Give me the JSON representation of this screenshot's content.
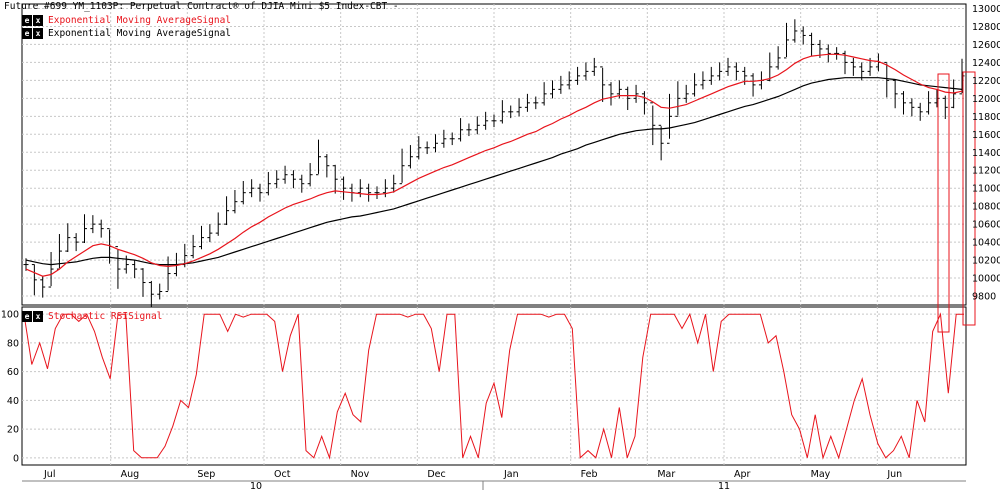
{
  "chart_data": [
    {
      "type": "line",
      "title": "Future #699 YM_1103P: Perpetual Contract® of DJIA Mini $5 Index-CBT -",
      "legend": [
        {
          "label": "Exponential Moving AverageSignal",
          "color": "#e8141c"
        },
        {
          "label": "Exponential Moving AverageSignal",
          "color": "#000000"
        }
      ],
      "ylim": [
        9700,
        13050
      ],
      "yticks": [
        9800,
        10000,
        10200,
        10400,
        10600,
        10800,
        11000,
        11200,
        11400,
        11600,
        11800,
        12000,
        12200,
        12400,
        12600,
        12800,
        13000
      ],
      "series": [
        {
          "name": "Price",
          "style": "ohlc",
          "values": [
            10150,
            9980,
            9900,
            10100,
            10300,
            10450,
            10400,
            10550,
            10600,
            10550,
            10350,
            10100,
            10150,
            10100,
            9950,
            9820,
            9850,
            10050,
            10150,
            10250,
            10350,
            10450,
            10500,
            10600,
            10750,
            10850,
            10950,
            11000,
            10950,
            11050,
            11100,
            11150,
            11100,
            11050,
            11150,
            11350,
            11250,
            11100,
            11000,
            10950,
            11000,
            10950,
            10950,
            11000,
            11050,
            11250,
            11350,
            11450,
            11450,
            11500,
            11550,
            11550,
            11650,
            11650,
            11700,
            11750,
            11750,
            11850,
            11850,
            11900,
            11950,
            11950,
            12050,
            12100,
            12150,
            12200,
            12250,
            12300,
            12350,
            12150,
            12050,
            12100,
            12000,
            12050,
            11950,
            11700,
            11500,
            11800,
            12000,
            12050,
            12150,
            12200,
            12250,
            12300,
            12350,
            12300,
            12250,
            12150,
            12200,
            12350,
            12450,
            12650,
            12750,
            12700,
            12600,
            12550,
            12500,
            12500,
            12400,
            12350,
            12300,
            12350,
            12400,
            12200,
            12050,
            11950,
            11900,
            11850,
            11950,
            12000,
            11900,
            12050,
            12250
          ]
        },
        {
          "name": "",
          "color": "#e8141c",
          "values": [
            10100,
            10060,
            10020,
            10040,
            10100,
            10180,
            10240,
            10300,
            10360,
            10380,
            10360,
            10320,
            10290,
            10260,
            10220,
            10170,
            10140,
            10130,
            10140,
            10160,
            10190,
            10230,
            10270,
            10320,
            10380,
            10440,
            10510,
            10570,
            10620,
            10680,
            10730,
            10780,
            10820,
            10850,
            10880,
            10920,
            10950,
            10970,
            10960,
            10950,
            10940,
            10930,
            10930,
            10940,
            10960,
            11010,
            11060,
            11110,
            11150,
            11190,
            11230,
            11260,
            11300,
            11340,
            11380,
            11420,
            11450,
            11490,
            11520,
            11560,
            11600,
            11630,
            11680,
            11720,
            11770,
            11810,
            11860,
            11900,
            11950,
            11990,
            12010,
            12030,
            12030,
            12030,
            12010,
            11960,
            11900,
            11890,
            11910,
            11930,
            11970,
            12010,
            12050,
            12090,
            12130,
            12160,
            12190,
            12190,
            12200,
            12220,
            12260,
            12320,
            12390,
            12440,
            12470,
            12480,
            12490,
            12490,
            12480,
            12460,
            12440,
            12420,
            12410,
            12370,
            12320,
            12260,
            12210,
            12160,
            12120,
            12100,
            12070,
            12060,
            12080
          ]
        },
        {
          "name": "",
          "color": "#000000",
          "values": [
            10200,
            10180,
            10160,
            10150,
            10160,
            10170,
            10180,
            10200,
            10220,
            10230,
            10230,
            10220,
            10210,
            10200,
            10180,
            10160,
            10150,
            10150,
            10150,
            10160,
            10170,
            10190,
            10210,
            10230,
            10260,
            10290,
            10320,
            10350,
            10380,
            10410,
            10440,
            10470,
            10500,
            10530,
            10560,
            10590,
            10620,
            10640,
            10660,
            10680,
            10690,
            10710,
            10730,
            10750,
            10770,
            10800,
            10830,
            10860,
            10890,
            10920,
            10950,
            10980,
            11010,
            11040,
            11070,
            11100,
            11130,
            11160,
            11190,
            11220,
            11250,
            11280,
            11310,
            11340,
            11380,
            11410,
            11440,
            11480,
            11510,
            11540,
            11570,
            11600,
            11620,
            11640,
            11650,
            11660,
            11660,
            11670,
            11690,
            11710,
            11730,
            11760,
            11790,
            11820,
            11850,
            11880,
            11910,
            11930,
            11960,
            11990,
            12020,
            12060,
            12100,
            12140,
            12170,
            12190,
            12210,
            12220,
            12230,
            12230,
            12230,
            12230,
            12230,
            12220,
            12210,
            12190,
            12170,
            12150,
            12140,
            12130,
            12120,
            12110,
            12100
          ]
        }
      ]
    },
    {
      "type": "line",
      "legend": [
        {
          "label": "Stochastic RSISignal",
          "color": "#e8141c"
        }
      ],
      "ylim": [
        -5,
        105
      ],
      "yticks": [
        0,
        20,
        40,
        60,
        80,
        100
      ],
      "series": [
        {
          "name": "Stochastic RSISignal",
          "color": "#e8141c",
          "values": [
            100,
            65,
            80,
            62,
            90,
            100,
            100,
            95,
            100,
            88,
            70,
            55,
            100,
            100,
            5,
            0,
            0,
            0,
            8,
            22,
            40,
            35,
            58,
            100,
            100,
            100,
            88,
            100,
            98,
            100,
            100,
            100,
            95,
            60,
            85,
            100,
            5,
            0,
            15,
            0,
            32,
            45,
            30,
            25,
            75,
            100,
            100,
            100,
            100,
            98,
            100,
            100,
            90,
            60,
            100,
            100,
            0,
            15,
            0,
            38,
            52,
            28,
            75,
            100,
            100,
            100,
            100,
            98,
            100,
            100,
            90,
            0,
            5,
            0,
            20,
            0,
            35,
            0,
            15,
            70,
            100,
            100,
            100,
            100,
            90,
            100,
            80,
            100,
            60,
            95,
            100,
            100,
            100,
            100,
            100,
            80,
            85,
            60,
            30,
            20,
            0,
            30,
            0,
            15,
            0,
            20,
            40,
            55,
            30,
            10,
            0,
            5,
            15,
            0,
            40,
            25,
            88,
            100,
            45,
            100,
            100
          ]
        }
      ]
    }
  ],
  "x_axis": {
    "months": [
      "Jul",
      "Aug",
      "Sep",
      "Oct",
      "Nov",
      "Dec",
      "Jan",
      "Feb",
      "Mar",
      "Apr",
      "May",
      "Jun"
    ],
    "years": [
      "10",
      "11"
    ]
  }
}
